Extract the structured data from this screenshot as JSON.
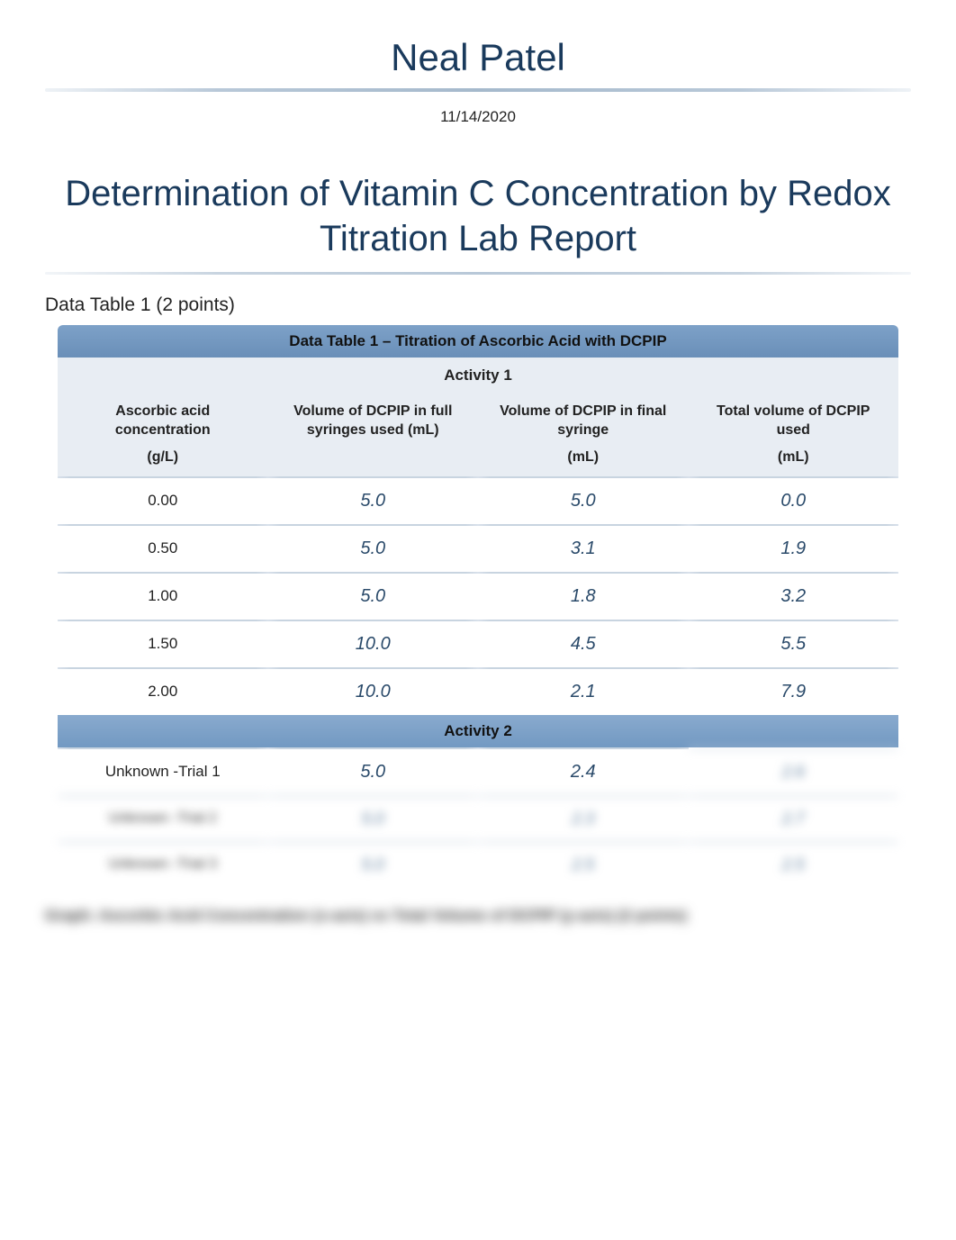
{
  "author": "Neal Patel",
  "date": "11/14/2020",
  "title": "Determination of Vitamin C Concentration by Redox Titration Lab Report",
  "section_label": "Data Table 1 (2 points)",
  "table": {
    "title": "Data Table 1 – Titration of Ascorbic Acid with DCPIP",
    "activity1_label": "Activity 1",
    "activity2_label": "Activity 2",
    "columns": {
      "c1": "Ascorbic acid concentration",
      "c2": "Volume of DCPIP in full syringes used (mL)",
      "c3": "Volume of DCPIP in final syringe",
      "c4": "Total volume of DCPIP used"
    },
    "units": {
      "u1": "(g/L)",
      "u2": "",
      "u3": "(mL)",
      "u4": "(mL)"
    },
    "activity1_rows": [
      {
        "conc": "0.00",
        "full": "5.0",
        "final": "5.0",
        "total": "0.0"
      },
      {
        "conc": "0.50",
        "full": "5.0",
        "final": "3.1",
        "total": "1.9"
      },
      {
        "conc": "1.00",
        "full": "5.0",
        "final": "1.8",
        "total": "3.2"
      },
      {
        "conc": "1.50",
        "full": "10.0",
        "final": "4.5",
        "total": "5.5"
      },
      {
        "conc": "2.00",
        "full": "10.0",
        "final": "2.1",
        "total": "7.9"
      }
    ],
    "activity2_rows": [
      {
        "conc": "Unknown -Trial 1",
        "full": "5.0",
        "final": "2.4",
        "total": "2.6"
      },
      {
        "conc": "Unknown -Trial 2",
        "full": "5.0",
        "final": "2.3",
        "total": "2.7"
      },
      {
        "conc": "Unknown -Trial 3",
        "full": "5.0",
        "final": "2.5",
        "total": "2.5"
      }
    ]
  },
  "bottom_text": "Graph: Ascorbic Acid Concentration (x-axis) vs Total Volume of DCPIP (y-axis) (2 points)",
  "colors": {
    "heading": "#1a3a5c",
    "header_band": "#7da1c8",
    "sub_band": "#e8edf3",
    "value_text": "#2a4a6a",
    "divider": "#c8d4e0"
  }
}
